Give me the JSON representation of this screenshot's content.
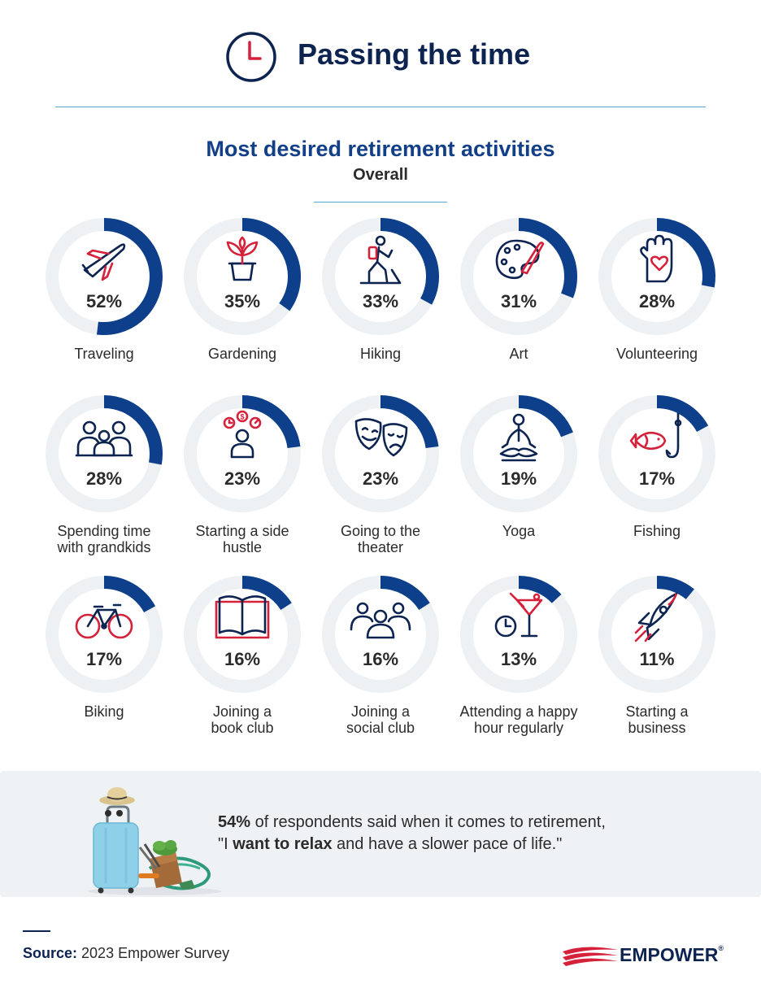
{
  "header": {
    "title": "Passing the time",
    "icon": "clock-icon"
  },
  "chart_data": {
    "type": "donut-grid",
    "title": "Most desired retirement activities",
    "subtitle": "Overall",
    "unit": "%",
    "colors": {
      "arc": "#0d3f8a",
      "track": "#eef1f3",
      "icon_line": "#0d2350",
      "icon_accent": "#d6213b"
    },
    "items": [
      {
        "label": "Traveling",
        "value": 52,
        "display": "52%",
        "icon": "airplane-icon"
      },
      {
        "label": "Gardening",
        "value": 35,
        "display": "35%",
        "icon": "potted-plant-icon"
      },
      {
        "label": "Hiking",
        "value": 33,
        "display": "33%",
        "icon": "hiker-icon"
      },
      {
        "label": "Art",
        "value": 31,
        "display": "31%",
        "icon": "paint-palette-icon"
      },
      {
        "label": "Volunteering",
        "value": 28,
        "display": "28%",
        "icon": "hand-heart-icon"
      },
      {
        "label": "Spending time with grandkids",
        "lines": [
          "Spending time",
          "with grandkids"
        ],
        "value": 28,
        "display": "28%",
        "icon": "family-icon"
      },
      {
        "label": "Starting a side hustle",
        "lines": [
          "Starting a side",
          "hustle"
        ],
        "value": 23,
        "display": "23%",
        "icon": "side-hustle-icon"
      },
      {
        "label": "Going to the theater",
        "lines": [
          "Going to the",
          "theater"
        ],
        "value": 23,
        "display": "23%",
        "icon": "theater-masks-icon"
      },
      {
        "label": "Yoga",
        "value": 19,
        "display": "19%",
        "icon": "yoga-icon"
      },
      {
        "label": "Fishing",
        "value": 17,
        "display": "17%",
        "icon": "fish-hook-icon"
      },
      {
        "label": "Biking",
        "value": 17,
        "display": "17%",
        "icon": "bicycle-icon"
      },
      {
        "label": "Joining a book club",
        "lines": [
          "Joining a",
          "book club"
        ],
        "value": 16,
        "display": "16%",
        "icon": "open-book-icon"
      },
      {
        "label": "Joining a social club",
        "lines": [
          "Joining a",
          "social club"
        ],
        "value": 16,
        "display": "16%",
        "icon": "group-icon"
      },
      {
        "label": "Attending a happy hour regularly",
        "lines": [
          "Attending a happy",
          "hour regularly"
        ],
        "value": 13,
        "display": "13%",
        "icon": "cocktail-clock-icon"
      },
      {
        "label": "Starting a business",
        "lines": [
          "Starting a",
          "business"
        ],
        "value": 11,
        "display": "11%",
        "icon": "rocket-icon"
      }
    ]
  },
  "callout": {
    "stat": "54%",
    "text_before": " of respondents said when it comes to retirement,",
    "quote_open": "\"I ",
    "emphasis": "want to relax",
    "text_after": " and have a slower pace of life.\"",
    "image": "suitcase-and-garden-tools-illustration"
  },
  "footer": {
    "source_label": "Source:",
    "source_text": " 2023 Empower Survey",
    "logo_text": "EMPOWER",
    "logo_mark": "®"
  }
}
